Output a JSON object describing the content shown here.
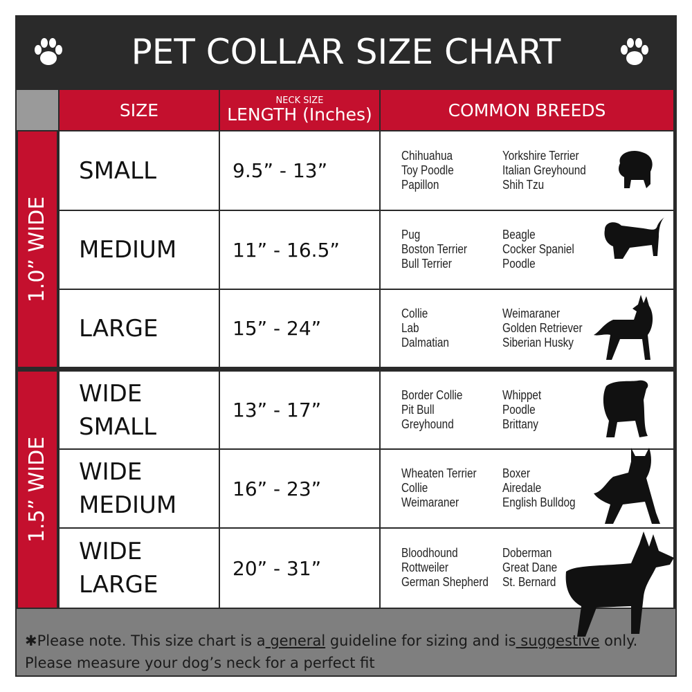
{
  "title": "PET COLLAR SIZE CHART",
  "icons": {
    "left": "paw-icon",
    "right": "paw-icon"
  },
  "colors": {
    "header_red": "#c4102e",
    "frame": "#2a2a2a",
    "footer": "#7f7f7f"
  },
  "headers": {
    "size": "SIZE",
    "length_small": "NECK SIZE",
    "length": "LENGTH (Inches)",
    "breeds": "COMMON BREEDS"
  },
  "groups": [
    {
      "label": "1.0” WIDE"
    },
    {
      "label": "1.5” WIDE"
    }
  ],
  "rows": [
    {
      "size": "SMALL",
      "length": "9.5” - 13”",
      "breeds_a": [
        "Chihuahua",
        "Toy Poodle",
        "Papillon"
      ],
      "breeds_b": [
        "Yorkshire Terrier",
        "Italian Greyhound",
        "Shih Tzu"
      ],
      "icon": "small-dog-silhouette-icon"
    },
    {
      "size": "MEDIUM",
      "length": "11” - 16.5”",
      "breeds_a": [
        "Pug",
        "Boston Terrier",
        "Bull Terrier"
      ],
      "breeds_b": [
        "Beagle",
        "Cocker Spaniel",
        "Poodle"
      ],
      "icon": "dachshund-silhouette-icon"
    },
    {
      "size": "LARGE",
      "length": "15” - 24”",
      "breeds_a": [
        "Collie",
        "Lab",
        "Dalmatian"
      ],
      "breeds_b": [
        "Weimaraner",
        "Golden Retriever",
        "Siberian Husky"
      ],
      "icon": "shepherd-silhouette-icon"
    },
    {
      "size": "WIDE SMALL",
      "size_l1": "WIDE",
      "size_l2": "SMALL",
      "length": "13” - 17”",
      "breeds_a": [
        "Border Collie",
        "Pit Bull",
        "Greyhound"
      ],
      "breeds_b": [
        "Whippet",
        "Poodle",
        "Brittany"
      ],
      "icon": "bulldog-silhouette-icon"
    },
    {
      "size": "WIDE MEDIUM",
      "size_l1": "WIDE",
      "size_l2": "MEDIUM",
      "length": "16” - 23”",
      "breeds_a": [
        "Wheaten Terrier",
        "Collie",
        "Weimaraner"
      ],
      "breeds_b": [
        "Boxer",
        "Airedale",
        "English Bulldog"
      ],
      "icon": "pitbull-silhouette-icon"
    },
    {
      "size": "WIDE LARGE",
      "size_l1": "WIDE",
      "size_l2": "LARGE",
      "length": "20” - 31”",
      "breeds_a": [
        "Bloodhound",
        "Rottweiler",
        "German Shepherd"
      ],
      "breeds_b": [
        "Doberman",
        "Great Dane",
        "St. Bernard"
      ],
      "icon": "doberman-silhouette-icon"
    }
  ],
  "footer": {
    "p1": "✱Please note. This size chart is a",
    "u1": " general",
    "p2": " guideline for sizing and is",
    "u2": " suggestive",
    "p3": " only.",
    "line2": "Please measure your dog’s neck for a perfect fit"
  }
}
